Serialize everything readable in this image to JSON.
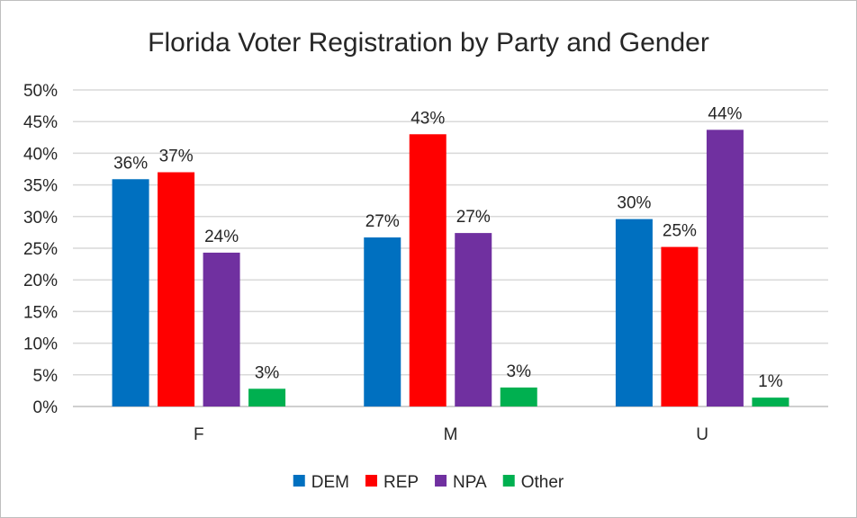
{
  "chart_data": {
    "type": "bar",
    "title": "Florida Voter Registration by Party and Gender",
    "xlabel": "",
    "ylabel": "",
    "categories": [
      "F",
      "M",
      "U"
    ],
    "ylim": [
      0,
      50
    ],
    "yticks": [
      {
        "value": 0,
        "label": "0%"
      },
      {
        "value": 5,
        "label": "5%"
      },
      {
        "value": 10,
        "label": "10%"
      },
      {
        "value": 15,
        "label": "15%"
      },
      {
        "value": 20,
        "label": "20%"
      },
      {
        "value": 25,
        "label": "25%"
      },
      {
        "value": 30,
        "label": "30%"
      },
      {
        "value": 35,
        "label": "35%"
      },
      {
        "value": 40,
        "label": "40%"
      },
      {
        "value": 45,
        "label": "45%"
      },
      {
        "value": 50,
        "label": "50%"
      }
    ],
    "grid": true,
    "legend_position": "bottom",
    "series": [
      {
        "name": "DEM",
        "color": "#0070c0",
        "values": [
          35.9,
          26.7,
          29.6
        ],
        "labels": [
          "36%",
          "27%",
          "30%"
        ]
      },
      {
        "name": "REP",
        "color": "#ff0000",
        "values": [
          37.0,
          43.0,
          25.2
        ],
        "labels": [
          "37%",
          "43%",
          "25%"
        ]
      },
      {
        "name": "NPA",
        "color": "#7030a0",
        "values": [
          24.3,
          27.4,
          43.7
        ],
        "labels": [
          "24%",
          "27%",
          "44%"
        ]
      },
      {
        "name": "Other",
        "color": "#00b050",
        "values": [
          2.8,
          3.0,
          1.4
        ],
        "labels": [
          "3%",
          "3%",
          "1%"
        ]
      }
    ]
  }
}
